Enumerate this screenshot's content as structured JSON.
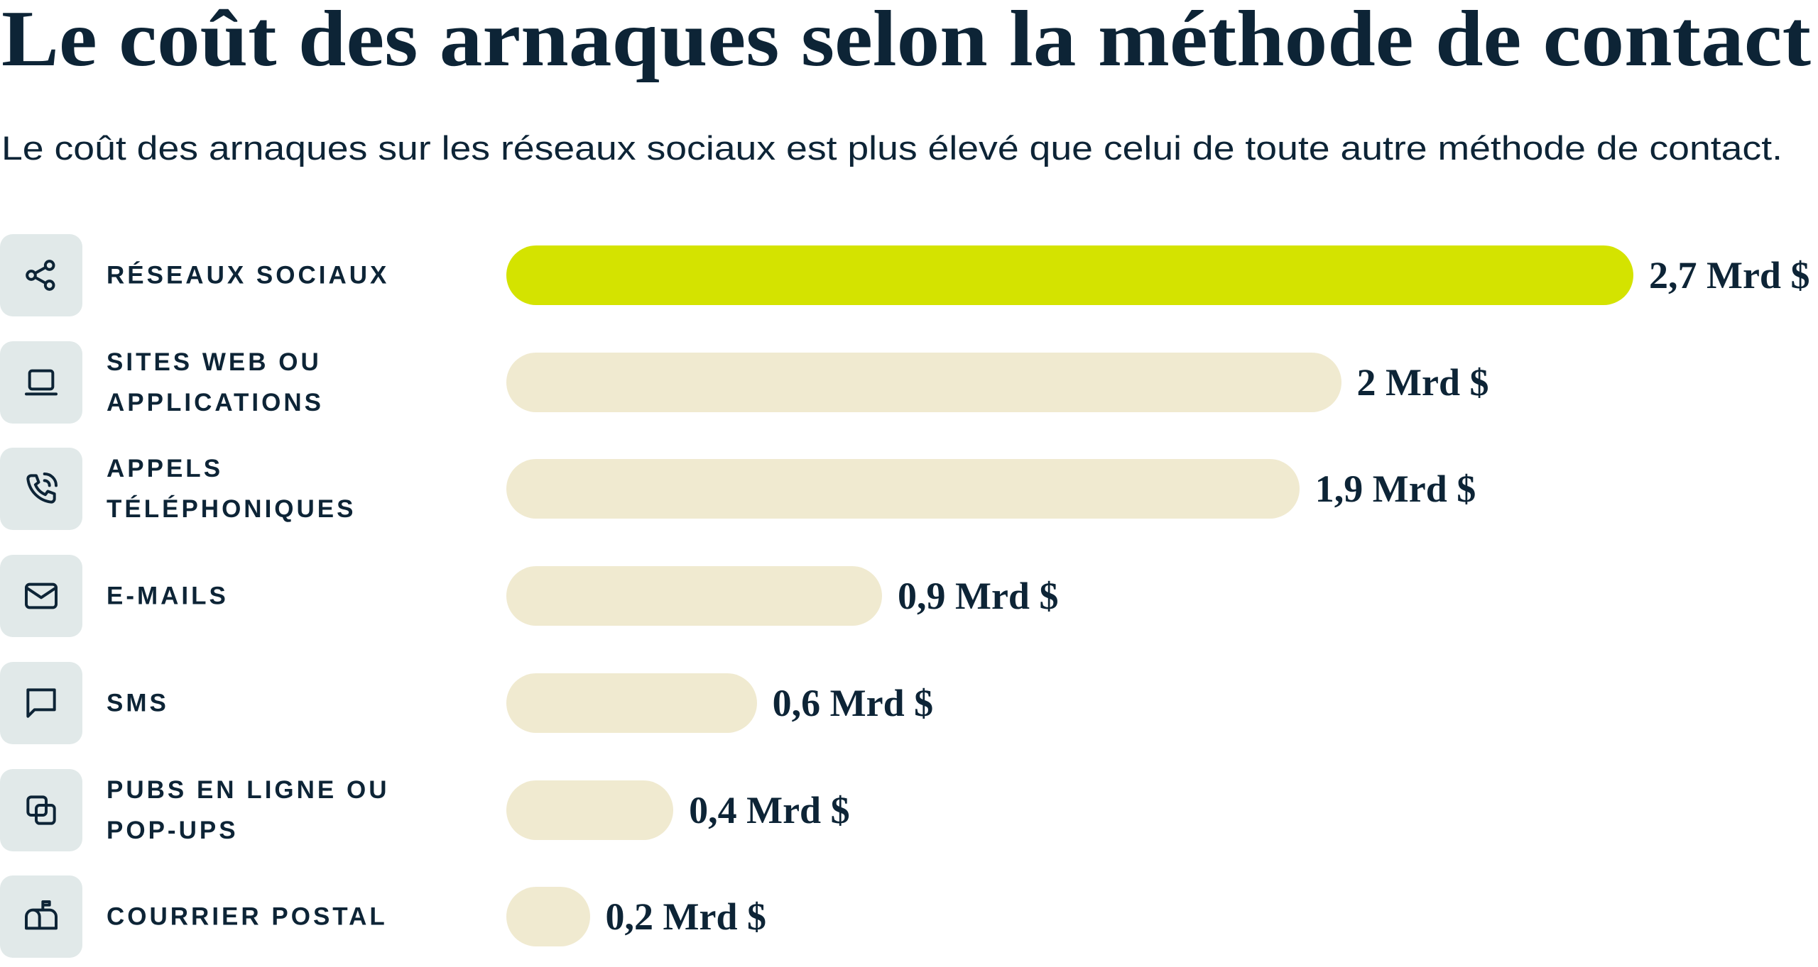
{
  "chart_data": {
    "type": "hbar",
    "title": "Le coût des arnaques selon la méthode de contact",
    "subtitle": "Le coût des arnaques sur les réseaux sociaux est plus élevé que celui de toute autre méthode de contact.",
    "categories": [
      "RÉSEAUX SOCIAUX",
      "SITES WEB OU APPLICATIONS",
      "APPELS TÉLÉPHONIQUES",
      "E-MAILS",
      "SMS",
      "PUBS EN LIGNE OU POP-UPS",
      "COURRIER POSTAL"
    ],
    "values": [
      2.7,
      2,
      1.9,
      0.9,
      0.6,
      0.4,
      0.2
    ],
    "value_labels": [
      "2,7 Mrd $",
      "2 Mrd $",
      "1,9 Mrd $",
      "0,9 Mrd $",
      "0,6 Mrd $",
      "0,4 Mrd $",
      "0,2 Mrd $"
    ],
    "colors": [
      "#d4e300",
      "#f0ead0",
      "#f0ead0",
      "#f0ead0",
      "#f0ead0",
      "#f0ead0",
      "#f0ead0"
    ],
    "xlim": [
      0,
      2.7
    ]
  }
}
